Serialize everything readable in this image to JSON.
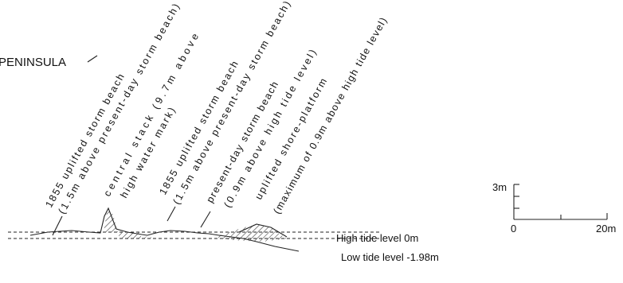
{
  "title": "PENINSULA",
  "annotations": [
    {
      "lines": [
        "1855 uplifted storm beach",
        "(1.5m above present-day storm beach)"
      ]
    },
    {
      "lines": [
        "central stack (9.7m above",
        "high water mark)"
      ]
    },
    {
      "lines": [
        "1855 uplifted storm beach",
        "(1.5m above present-day storm beach)"
      ]
    },
    {
      "lines": [
        "present-day storm beach",
        "(0.9m above high tide level)"
      ]
    },
    {
      "lines": [
        "uplifted shore-platform",
        "(maximum of 0.9m above high tide level)"
      ]
    }
  ],
  "levels": {
    "high": "High tide level 0m",
    "low": "Low tide level -1.98m"
  },
  "scale": {
    "vertical": "3m",
    "origin": "0",
    "horizontal": "20m"
  }
}
